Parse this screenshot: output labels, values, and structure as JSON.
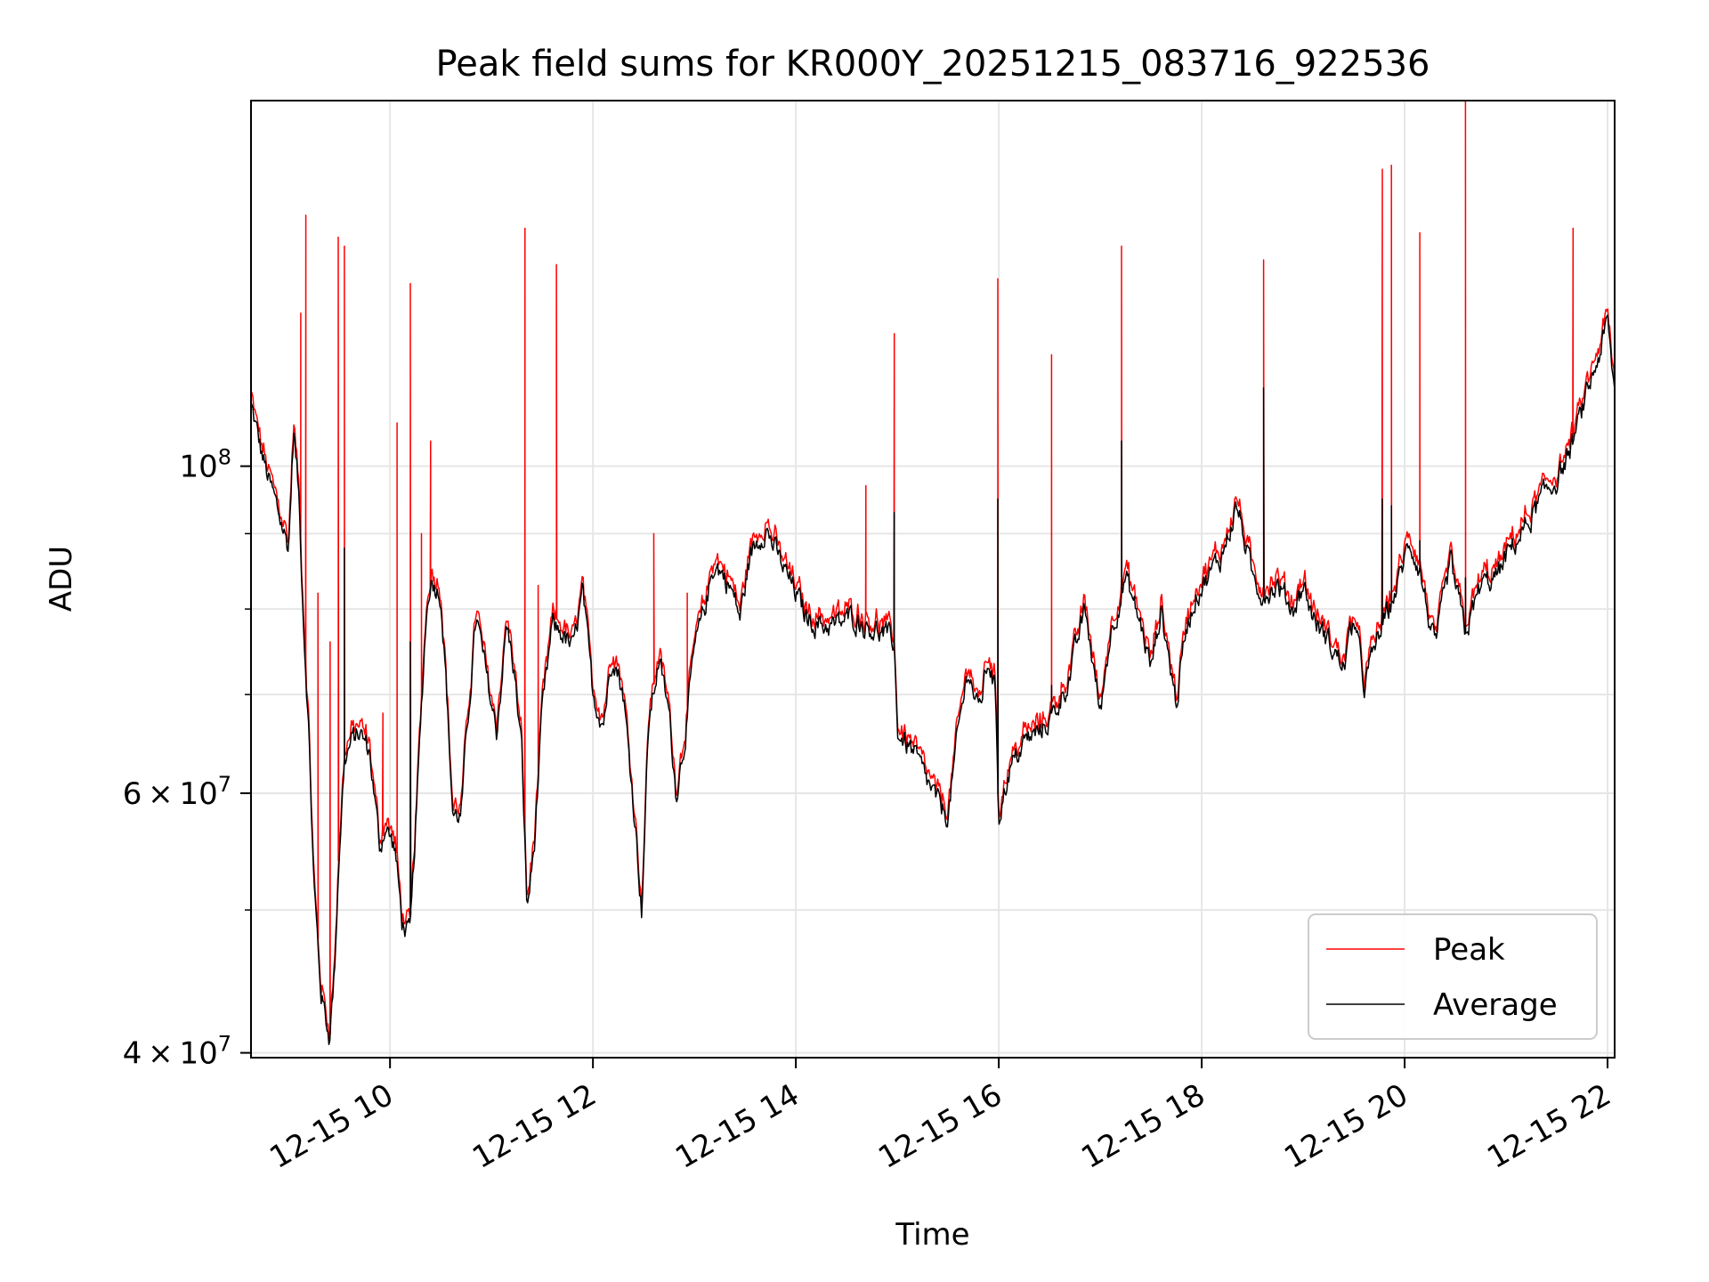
{
  "chart_data": {
    "type": "line",
    "title": "Peak field sums for KR000Y_20251215_083716_922536",
    "xlabel": "Time",
    "ylabel": "ADU",
    "yscale": "log",
    "ylim": [
      39700000,
      177000000
    ],
    "xlim_hours": [
      8.63,
      22.07
    ],
    "grid": true,
    "legend_position": "lower-right",
    "x_ticks": [
      {
        "hour": 10,
        "label": "12-15 10"
      },
      {
        "hour": 12,
        "label": "12-15 12"
      },
      {
        "hour": 14,
        "label": "12-15 14"
      },
      {
        "hour": 16,
        "label": "12-15 16"
      },
      {
        "hour": 18,
        "label": "12-15 18"
      },
      {
        "hour": 20,
        "label": "12-15 20"
      },
      {
        "hour": 22,
        "label": "12-15 22"
      }
    ],
    "y_major_ticks": [
      {
        "value": 100000000,
        "base": "10",
        "exp": "8",
        "coef": ""
      },
      {
        "value": 60000000,
        "base": "10",
        "exp": "7",
        "coef": "6"
      },
      {
        "value": 40000000,
        "base": "10",
        "exp": "7",
        "coef": "4"
      }
    ],
    "y_minor_ticks": [
      50000000,
      70000000,
      80000000,
      90000000
    ],
    "series": [
      {
        "name": "Peak",
        "color": "#ff0000",
        "role": "peak"
      },
      {
        "name": "Average",
        "color": "#000000",
        "role": "average"
      }
    ],
    "average": {
      "hours": [
        8.63,
        8.72,
        8.8,
        8.9,
        9.0,
        9.05,
        9.1,
        9.15,
        9.2,
        9.25,
        9.32,
        9.4,
        9.45,
        9.5,
        9.55,
        9.62,
        9.7,
        9.8,
        9.9,
        9.95,
        10.05,
        10.12,
        10.2,
        10.28,
        10.35,
        10.4,
        10.5,
        10.55,
        10.62,
        10.7,
        10.78,
        10.85,
        10.95,
        11.05,
        11.15,
        11.22,
        11.3,
        11.35,
        11.42,
        11.5,
        11.6,
        11.7,
        11.8,
        11.9,
        12.0,
        12.1,
        12.2,
        12.3,
        12.42,
        12.48,
        12.55,
        12.65,
        12.75,
        12.82,
        12.9,
        13.0,
        13.1,
        13.2,
        13.35,
        13.45,
        13.55,
        13.7,
        13.85,
        14.0,
        14.1,
        14.25,
        14.4,
        14.55,
        14.7,
        14.85,
        14.97,
        15.0,
        15.15,
        15.25,
        15.4,
        15.5,
        15.6,
        15.7,
        15.8,
        15.9,
        15.97,
        16.0,
        16.1,
        16.25,
        16.4,
        16.55,
        16.7,
        16.85,
        17.0,
        17.1,
        17.25,
        17.4,
        17.5,
        17.6,
        17.75,
        17.85,
        17.95,
        18.05,
        18.2,
        18.35,
        18.5,
        18.6,
        18.75,
        18.9,
        19.0,
        19.1,
        19.25,
        19.4,
        19.5,
        19.6,
        19.75,
        19.85,
        19.95,
        20.05,
        20.15,
        20.3,
        20.45,
        20.6,
        20.75,
        20.9,
        21.05,
        21.2,
        21.35,
        21.5,
        21.6,
        21.7,
        21.8,
        21.9,
        22.0,
        22.07
      ],
      "values": [
        110000000,
        103000000,
        98000000,
        93000000,
        88000000,
        106000000,
        96000000,
        78000000,
        66000000,
        52000000,
        44000000,
        41000000,
        45000000,
        55000000,
        63000000,
        65000000,
        66000000,
        64000000,
        55000000,
        57000000,
        55000000,
        49000000,
        48000000,
        62000000,
        78000000,
        84000000,
        82000000,
        72000000,
        58000000,
        58000000,
        69000000,
        79000000,
        72000000,
        66000000,
        78000000,
        73000000,
        64000000,
        50000000,
        55000000,
        68000000,
        78000000,
        77000000,
        75000000,
        82000000,
        70000000,
        67000000,
        75000000,
        70000000,
        57000000,
        50000000,
        67000000,
        74000000,
        68000000,
        60000000,
        65000000,
        75000000,
        80000000,
        86000000,
        83000000,
        79000000,
        87000000,
        91000000,
        86000000,
        82000000,
        79000000,
        78000000,
        78000000,
        79000000,
        78000000,
        77000000,
        76000000,
        66000000,
        64000000,
        62000000,
        59000000,
        58000000,
        66000000,
        73000000,
        68000000,
        74000000,
        70000000,
        58000000,
        62000000,
        65000000,
        66000000,
        68000000,
        72000000,
        80000000,
        68000000,
        77000000,
        84000000,
        78000000,
        73000000,
        80000000,
        69000000,
        78000000,
        82000000,
        84000000,
        87000000,
        94000000,
        84000000,
        82000000,
        83000000,
        80000000,
        83000000,
        79000000,
        76000000,
        73000000,
        79000000,
        71000000,
        77000000,
        80000000,
        84000000,
        89000000,
        85000000,
        75000000,
        86000000,
        77000000,
        83000000,
        84000000,
        88000000,
        91000000,
        95000000,
        98000000,
        101000000,
        106000000,
        112000000,
        118000000,
        125000000,
        112000000
      ]
    },
    "peak_spikes": [
      {
        "hour": 9.12,
        "value": 127000000
      },
      {
        "hour": 9.17,
        "value": 148000000
      },
      {
        "hour": 9.29,
        "value": 82000000
      },
      {
        "hour": 9.41,
        "value": 76000000
      },
      {
        "hour": 9.49,
        "value": 143000000
      },
      {
        "hour": 9.55,
        "value": 141000000
      },
      {
        "hour": 9.93,
        "value": 68000000
      },
      {
        "hour": 10.07,
        "value": 107000000
      },
      {
        "hour": 10.2,
        "value": 133000000
      },
      {
        "hour": 10.31,
        "value": 90000000
      },
      {
        "hour": 10.4,
        "value": 104000000
      },
      {
        "hour": 11.33,
        "value": 145000000
      },
      {
        "hour": 11.46,
        "value": 83000000
      },
      {
        "hour": 11.64,
        "value": 137000000
      },
      {
        "hour": 12.6,
        "value": 90000000
      },
      {
        "hour": 12.93,
        "value": 82000000
      },
      {
        "hour": 14.69,
        "value": 97000000
      },
      {
        "hour": 14.97,
        "value": 123000000
      },
      {
        "hour": 15.99,
        "value": 134000000
      },
      {
        "hour": 16.52,
        "value": 119000000
      },
      {
        "hour": 17.21,
        "value": 141000000
      },
      {
        "hour": 18.61,
        "value": 138000000
      },
      {
        "hour": 19.78,
        "value": 159000000
      },
      {
        "hour": 19.87,
        "value": 160000000
      },
      {
        "hour": 20.15,
        "value": 144000000
      },
      {
        "hour": 20.6,
        "value": 177000000
      },
      {
        "hour": 21.66,
        "value": 145000000
      }
    ],
    "average_spikes": [
      {
        "hour": 9.55,
        "value": 88000000
      },
      {
        "hour": 10.2,
        "value": 76000000
      },
      {
        "hour": 14.97,
        "value": 93000000
      },
      {
        "hour": 15.99,
        "value": 95000000
      },
      {
        "hour": 16.52,
        "value": 71000000
      },
      {
        "hour": 17.21,
        "value": 104000000
      },
      {
        "hour": 18.61,
        "value": 113000000
      },
      {
        "hour": 19.78,
        "value": 95000000
      },
      {
        "hour": 19.87,
        "value": 94000000
      },
      {
        "hour": 20.15,
        "value": 89000000
      },
      {
        "hour": 20.6,
        "value": 84000000
      }
    ]
  }
}
